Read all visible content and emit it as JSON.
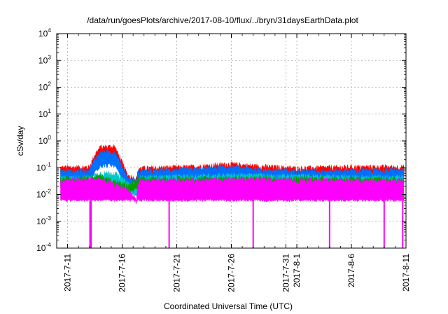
{
  "chart_data": {
    "type": "line",
    "title": "/data/run/goesPlots/archive/2017-08-10/flux/../bryn/31daysEarthData.plot",
    "xlabel": "Coordinated Universal Time (UTC)",
    "ylabel": "cSv/day",
    "yscale": "log",
    "ylim": [
      0.0001,
      10000
    ],
    "xlim": [
      "2017-07-10",
      "2017-08-11"
    ],
    "grid": true,
    "legend": "none",
    "x_ticks": [
      "2017-7-11",
      "2017-7-16",
      "2017-7-21",
      "2017-7-26",
      "2017-7-31",
      "2017-8-1",
      "2017-8-6",
      "2017-8-11"
    ],
    "y_ticks": [
      {
        "base": "10",
        "exp": "-4"
      },
      {
        "base": "10",
        "exp": "-3"
      },
      {
        "base": "10",
        "exp": "-2"
      },
      {
        "base": "10",
        "exp": "-1"
      },
      {
        "base": "10",
        "exp": "0"
      },
      {
        "base": "10",
        "exp": "1"
      },
      {
        "base": "10",
        "exp": "2"
      },
      {
        "base": "10",
        "exp": "3"
      },
      {
        "base": "10",
        "exp": "4"
      }
    ],
    "series": [
      {
        "color": "#ff0000",
        "envelope": [
          [
            "2017-07-10",
            0.095
          ],
          [
            "2017-07-13",
            0.1
          ],
          [
            "2017-07-13.5",
            0.3
          ],
          [
            "2017-07-14",
            0.55
          ],
          [
            "2017-07-15.3",
            0.6
          ],
          [
            "2017-07-15.8",
            0.22
          ],
          [
            "2017-07-16.5",
            0.05
          ],
          [
            "2017-07-17.3",
            0.035
          ],
          [
            "2017-07-17.5",
            0.09
          ],
          [
            "2017-07-22",
            0.1
          ],
          [
            "2017-07-26",
            0.13
          ],
          [
            "2017-07-28",
            0.11
          ],
          [
            "2017-08-01",
            0.09
          ],
          [
            "2017-08-06",
            0.1
          ],
          [
            "2017-08-11",
            0.1
          ]
        ]
      },
      {
        "color": "#0070ff",
        "envelope": [
          [
            "2017-07-10",
            0.07
          ],
          [
            "2017-07-13",
            0.075
          ],
          [
            "2017-07-13.5",
            0.2
          ],
          [
            "2017-07-14",
            0.35
          ],
          [
            "2017-07-15.3",
            0.36
          ],
          [
            "2017-07-15.8",
            0.15
          ],
          [
            "2017-07-16.5",
            0.04
          ],
          [
            "2017-07-17.3",
            0.03
          ],
          [
            "2017-07-17.5",
            0.07
          ],
          [
            "2017-07-22",
            0.08
          ],
          [
            "2017-07-26",
            0.1
          ],
          [
            "2017-07-28",
            0.085
          ],
          [
            "2017-08-01",
            0.07
          ],
          [
            "2017-08-06",
            0.075
          ],
          [
            "2017-08-11",
            0.075
          ]
        ]
      },
      {
        "color": "#00c8c8",
        "envelope": [
          [
            "2017-07-10",
            0.04
          ],
          [
            "2017-07-13",
            0.04
          ],
          [
            "2017-07-14",
            0.06
          ],
          [
            "2017-07-15.3",
            0.06
          ],
          [
            "2017-07-16.5",
            0.025
          ],
          [
            "2017-07-17.3",
            0.02
          ],
          [
            "2017-07-17.5",
            0.04
          ],
          [
            "2017-07-26",
            0.05
          ],
          [
            "2017-08-11",
            0.04
          ]
        ]
      },
      {
        "color": "#00a000",
        "envelope": [
          [
            "2017-07-10",
            0.035
          ],
          [
            "2017-07-14",
            0.045
          ],
          [
            "2017-07-16.5",
            0.02
          ],
          [
            "2017-07-17.5",
            0.035
          ],
          [
            "2017-07-26",
            0.04
          ],
          [
            "2017-08-11",
            0.035
          ]
        ]
      },
      {
        "color": "#ff00ff",
        "envelope": [
          [
            "2017-07-10",
            0.03
          ],
          [
            "2017-07-14",
            0.035
          ],
          [
            "2017-07-16.5",
            0.015
          ],
          [
            "2017-07-17.3",
            0.006
          ],
          [
            "2017-07-17.5",
            0.03
          ],
          [
            "2017-07-26",
            0.035
          ],
          [
            "2017-08-11",
            0.03
          ]
        ],
        "floor": 0.006,
        "dropouts": [
          "2017-07-13.05",
          "2017-07-13.15",
          "2017-07-20.3",
          "2017-07-28.0",
          "2017-08-04.0",
          "2017-08-09.0",
          "2017-08-10.7"
        ]
      }
    ]
  }
}
